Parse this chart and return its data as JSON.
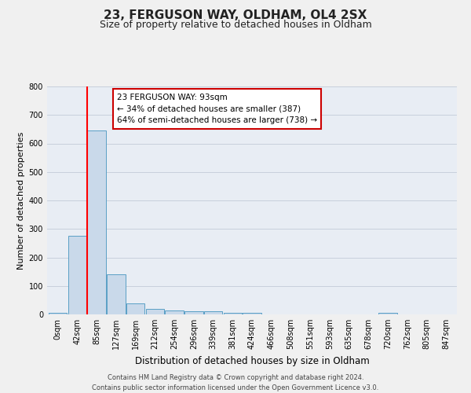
{
  "title": "23, FERGUSON WAY, OLDHAM, OL4 2SX",
  "subtitle": "Size of property relative to detached houses in Oldham",
  "xlabel": "Distribution of detached houses by size in Oldham",
  "ylabel": "Number of detached properties",
  "categories": [
    "0sqm",
    "42sqm",
    "85sqm",
    "127sqm",
    "169sqm",
    "212sqm",
    "254sqm",
    "296sqm",
    "339sqm",
    "381sqm",
    "424sqm",
    "466sqm",
    "508sqm",
    "551sqm",
    "593sqm",
    "635sqm",
    "678sqm",
    "720sqm",
    "762sqm",
    "805sqm",
    "847sqm"
  ],
  "values": [
    5,
    275,
    645,
    140,
    38,
    20,
    13,
    10,
    10,
    5,
    5,
    0,
    0,
    0,
    0,
    0,
    0,
    5,
    0,
    0,
    0
  ],
  "bar_color": "#c9d9ea",
  "bar_edge_color": "#5a9fc5",
  "red_line_index": 1.5,
  "annotation_text1": "23 FERGUSON WAY: 93sqm",
  "annotation_text2": "← 34% of detached houses are smaller (387)",
  "annotation_text3": "64% of semi-detached houses are larger (738) →",
  "annotation_box_facecolor": "#ffffff",
  "annotation_box_edgecolor": "#cc0000",
  "ylim": [
    0,
    800
  ],
  "yticks": [
    0,
    100,
    200,
    300,
    400,
    500,
    600,
    700,
    800
  ],
  "grid_color": "#c8d0dc",
  "plot_bg_color": "#e8edf4",
  "fig_bg_color": "#f0f0f0",
  "footer_line1": "Contains HM Land Registry data © Crown copyright and database right 2024.",
  "footer_line2": "Contains public sector information licensed under the Open Government Licence v3.0.",
  "title_fontsize": 11,
  "subtitle_fontsize": 9,
  "ylabel_fontsize": 8,
  "xlabel_fontsize": 8.5,
  "tick_fontsize": 7,
  "annotation_fontsize": 7.5,
  "footer_fontsize": 6
}
